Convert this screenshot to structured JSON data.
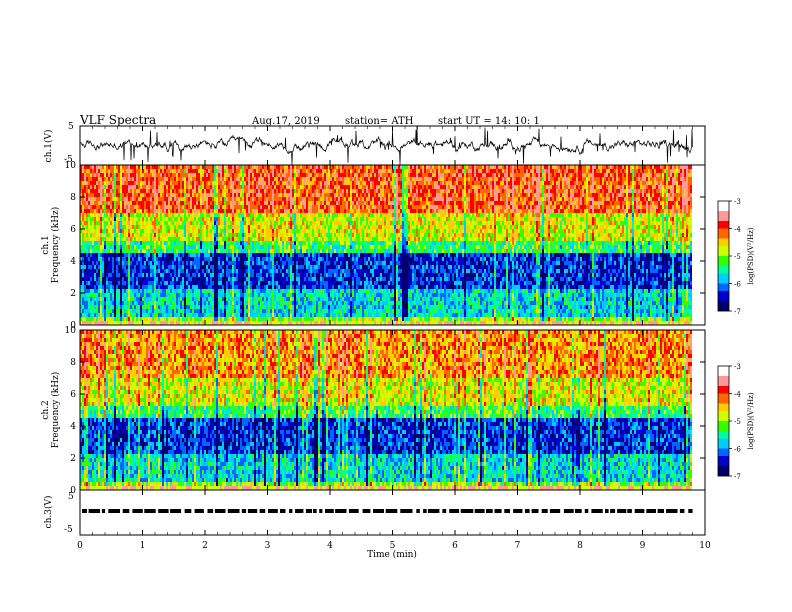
{
  "header": {
    "title": "VLF  Spectra",
    "date": "Aug.17, 2019",
    "station": "station= ATH",
    "start": "start  UT  =    14: 10: 1"
  },
  "chart_data": [
    {
      "type": "line",
      "name": "ch1-waveform",
      "ylabel": "ch.1(V)",
      "ylim": [
        -5,
        5
      ],
      "yticks": [
        "5",
        "-5"
      ],
      "xlim": [
        0,
        10
      ]
    },
    {
      "type": "heatmap",
      "name": "ch1-spectrogram",
      "ylabel": "ch.1\nFrequency (kHz)",
      "ylim": [
        0,
        10
      ],
      "yticks": [
        "0",
        "2",
        "4",
        "6",
        "8",
        "10"
      ],
      "xlim": [
        0,
        10
      ],
      "colorbar": {
        "label": "log(PSD)(V²/Hz)",
        "range": [
          -7,
          -3
        ],
        "ticks": [
          "-3",
          "-4",
          "-5",
          "-6",
          "-7"
        ]
      }
    },
    {
      "type": "heatmap",
      "name": "ch2-spectrogram",
      "ylabel": "ch.2\nFrequency (kHz)",
      "ylim": [
        0,
        10
      ],
      "yticks": [
        "0",
        "2",
        "4",
        "6",
        "8",
        "10"
      ],
      "xlim": [
        0,
        10
      ],
      "colorbar": {
        "label": "log(PSD)(V²/Hz)",
        "range": [
          -7,
          -3
        ],
        "ticks": [
          "-3",
          "-4",
          "-5",
          "-6",
          "-7"
        ]
      }
    },
    {
      "type": "line",
      "name": "ch3-waveform",
      "ylabel": "ch.3(V)",
      "ylim": [
        -5,
        5
      ],
      "yticks": [
        "5",
        "-5"
      ],
      "xlim": [
        0,
        10
      ],
      "xlabel": "Time  (min)",
      "xticks": [
        "0",
        "1",
        "2",
        "3",
        "4",
        "5",
        "6",
        "7",
        "8",
        "9",
        "10"
      ]
    }
  ],
  "colors": {
    "colormap": [
      "#000066",
      "#0000cc",
      "#0066ff",
      "#00ccff",
      "#00ff99",
      "#33ff00",
      "#ccff00",
      "#ffcc00",
      "#ff6600",
      "#ff0000",
      "#ff9999",
      "#ffffff"
    ]
  }
}
